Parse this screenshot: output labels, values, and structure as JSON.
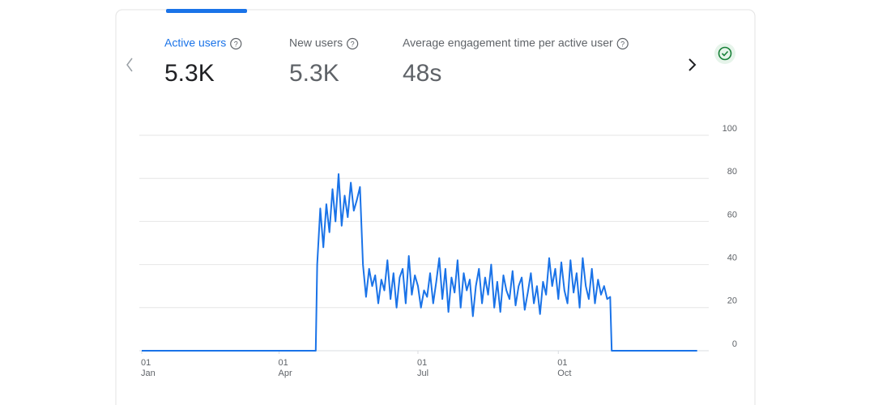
{
  "tabs": [
    {
      "label": "Active users",
      "value": "5.3K"
    },
    {
      "label": "New users",
      "value": "5.3K"
    },
    {
      "label": "Average engagement time per active user",
      "value": "48s"
    }
  ],
  "chart_data": {
    "type": "line",
    "color": "#1a73e8",
    "grid": true,
    "xlim": [
      0,
      370
    ],
    "ylim": [
      0,
      100
    ],
    "yticks": [
      0,
      20,
      40,
      60,
      80,
      100
    ],
    "xticks": [
      {
        "value": 0,
        "label": "01\nJan"
      },
      {
        "value": 90,
        "label": "01\nApr"
      },
      {
        "value": 181,
        "label": "01\nJul"
      },
      {
        "value": 273,
        "label": "01\nOct"
      }
    ],
    "x": [
      0,
      114,
      115,
      117,
      119,
      121,
      123,
      125,
      127,
      129,
      131,
      133,
      135,
      137,
      139,
      141,
      143,
      145,
      147,
      149,
      151,
      153,
      155,
      157,
      159,
      161,
      163,
      165,
      167,
      169,
      171,
      173,
      175,
      177,
      179,
      181,
      183,
      185,
      187,
      189,
      191,
      193,
      195,
      197,
      199,
      201,
      203,
      205,
      207,
      209,
      211,
      213,
      215,
      217,
      219,
      221,
      223,
      225,
      227,
      229,
      231,
      233,
      235,
      237,
      239,
      241,
      243,
      245,
      247,
      249,
      251,
      253,
      255,
      257,
      259,
      261,
      263,
      265,
      267,
      269,
      271,
      273,
      275,
      277,
      279,
      281,
      283,
      285,
      287,
      289,
      291,
      293,
      295,
      297,
      299,
      301,
      303,
      305,
      307,
      308,
      364
    ],
    "values": [
      0,
      0,
      40,
      66,
      48,
      68,
      55,
      75,
      60,
      82,
      58,
      72,
      62,
      78,
      65,
      70,
      76,
      40,
      25,
      38,
      30,
      35,
      22,
      33,
      28,
      42,
      24,
      36,
      20,
      34,
      38,
      22,
      44,
      26,
      35,
      30,
      20,
      28,
      25,
      36,
      22,
      32,
      43,
      24,
      38,
      18,
      34,
      27,
      42,
      20,
      36,
      28,
      33,
      16,
      30,
      38,
      22,
      34,
      26,
      40,
      20,
      32,
      18,
      35,
      28,
      24,
      37,
      21,
      30,
      34,
      19,
      27,
      36,
      22,
      30,
      17,
      32,
      26,
      43,
      30,
      38,
      24,
      41,
      28,
      22,
      42,
      27,
      36,
      20,
      43,
      30,
      24,
      38,
      22,
      33,
      26,
      30,
      24,
      25,
      0,
      0
    ]
  }
}
